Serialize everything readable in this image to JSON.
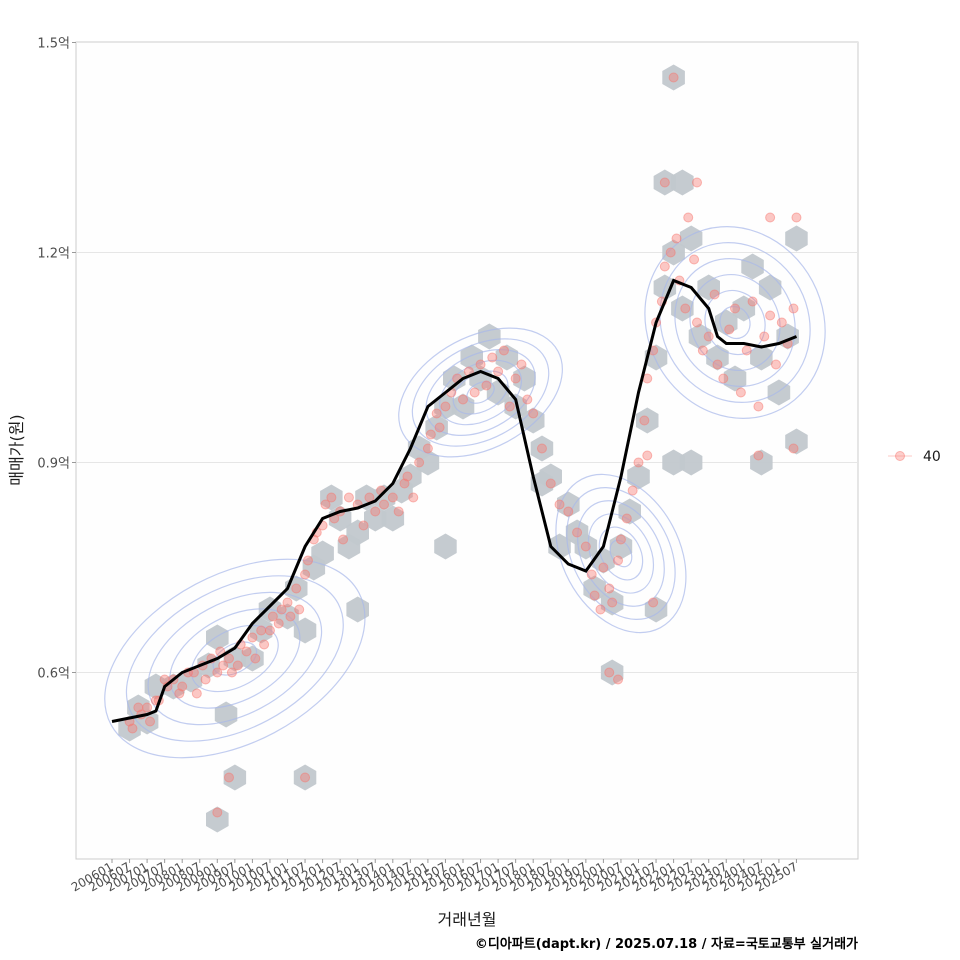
{
  "chart_data": {
    "type": "scatter",
    "xlabel": "거래년월",
    "ylabel": "매매가(원)",
    "caption": "©디아파트(dapt.kr) / 2025.07.18 / 자료=국토교통부 실거래가",
    "y_unit": "억",
    "ylim": [
      0.45,
      1.51
    ],
    "yticks": [
      0.6,
      0.9,
      1.2,
      1.5
    ],
    "ytick_labels": [
      "0.6억",
      "0.9억",
      "1.2억",
      "1.5억"
    ],
    "xtick_labels": [
      "200601",
      "200607",
      "200701",
      "200707",
      "200801",
      "200807",
      "200901",
      "200907",
      "201001",
      "201007",
      "201101",
      "201107",
      "201201",
      "201207",
      "201301",
      "201307",
      "201401",
      "201407",
      "201501",
      "201507",
      "201601",
      "201607",
      "201701",
      "201707",
      "201801",
      "201807",
      "201901",
      "201907",
      "202001",
      "202007",
      "202101",
      "202107",
      "202201",
      "202207",
      "202301",
      "202307",
      "202401",
      "202407",
      "202501",
      "202507"
    ],
    "grid": true,
    "legend_position": "right",
    "legend": [
      {
        "label": "40",
        "color": "#f8766d"
      }
    ],
    "colors": {
      "points": "#f8766d",
      "hex": "#c2c8cd",
      "contour": "#a8b8ea",
      "trend": "#000000"
    },
    "trend": {
      "x": [
        "2006-01",
        "2006-07",
        "2007-01",
        "2007-04",
        "2007-07",
        "2008-01",
        "2008-07",
        "2009-01",
        "2009-07",
        "2010-01",
        "2010-07",
        "2011-01",
        "2011-07",
        "2012-01",
        "2012-07",
        "2013-01",
        "2013-07",
        "2014-01",
        "2014-07",
        "2015-01",
        "2015-07",
        "2016-01",
        "2016-07",
        "2017-01",
        "2017-07",
        "2018-01",
        "2018-07",
        "2019-01",
        "2019-07",
        "2020-01",
        "2020-07",
        "2021-01",
        "2021-07",
        "2022-01",
        "2022-07",
        "2023-01",
        "2023-04",
        "2023-07",
        "2024-01",
        "2024-07",
        "2025-01",
        "2025-07"
      ],
      "y": [
        0.53,
        0.535,
        0.54,
        0.545,
        0.58,
        0.6,
        0.61,
        0.62,
        0.635,
        0.67,
        0.695,
        0.72,
        0.78,
        0.82,
        0.83,
        0.835,
        0.845,
        0.87,
        0.92,
        0.98,
        1.0,
        1.02,
        1.03,
        1.02,
        0.99,
        0.88,
        0.78,
        0.755,
        0.745,
        0.78,
        0.88,
        1.0,
        1.1,
        1.16,
        1.15,
        1.12,
        1.08,
        1.07,
        1.07,
        1.065,
        1.07,
        1.08
      ]
    },
    "series": [
      {
        "name": "40",
        "points": [
          [
            "2006-07",
            0.53
          ],
          [
            "2006-08",
            0.52
          ],
          [
            "2006-10",
            0.55
          ],
          [
            "2006-11",
            0.54
          ],
          [
            "2007-01",
            0.55
          ],
          [
            "2007-02",
            0.53
          ],
          [
            "2007-04",
            0.56
          ],
          [
            "2007-05",
            0.56
          ],
          [
            "2007-07",
            0.59
          ],
          [
            "2007-08",
            0.58
          ],
          [
            "2007-10",
            0.59
          ],
          [
            "2007-12",
            0.57
          ],
          [
            "2008-01",
            0.58
          ],
          [
            "2008-03",
            0.6
          ],
          [
            "2008-05",
            0.6
          ],
          [
            "2008-06",
            0.57
          ],
          [
            "2008-08",
            0.61
          ],
          [
            "2008-09",
            0.59
          ],
          [
            "2008-11",
            0.62
          ],
          [
            "2009-01",
            0.6
          ],
          [
            "2009-02",
            0.63
          ],
          [
            "2009-03",
            0.61
          ],
          [
            "2009-05",
            0.62
          ],
          [
            "2009-06",
            0.6
          ],
          [
            "2009-08",
            0.61
          ],
          [
            "2009-09",
            0.64
          ],
          [
            "2009-11",
            0.63
          ],
          [
            "2010-01",
            0.65
          ],
          [
            "2010-02",
            0.62
          ],
          [
            "2010-04",
            0.66
          ],
          [
            "2010-05",
            0.64
          ],
          [
            "2010-07",
            0.66
          ],
          [
            "2010-08",
            0.68
          ],
          [
            "2010-10",
            0.67
          ],
          [
            "2010-11",
            0.69
          ],
          [
            "2011-01",
            0.7
          ],
          [
            "2011-02",
            0.68
          ],
          [
            "2011-04",
            0.72
          ],
          [
            "2011-05",
            0.69
          ],
          [
            "2011-07",
            0.74
          ],
          [
            "2011-08",
            0.76
          ],
          [
            "2011-10",
            0.79
          ],
          [
            "2011-11",
            0.8
          ],
          [
            "2012-01",
            0.81
          ],
          [
            "2012-02",
            0.84
          ],
          [
            "2012-04",
            0.85
          ],
          [
            "2012-05",
            0.82
          ],
          [
            "2012-07",
            0.83
          ],
          [
            "2012-08",
            0.79
          ],
          [
            "2012-10",
            0.85
          ],
          [
            "2013-01",
            0.84
          ],
          [
            "2013-03",
            0.81
          ],
          [
            "2013-05",
            0.85
          ],
          [
            "2013-07",
            0.83
          ],
          [
            "2013-09",
            0.86
          ],
          [
            "2013-10",
            0.84
          ],
          [
            "2014-01",
            0.85
          ],
          [
            "2014-03",
            0.83
          ],
          [
            "2014-05",
            0.87
          ],
          [
            "2014-06",
            0.88
          ],
          [
            "2014-08",
            0.85
          ],
          [
            "2014-10",
            0.9
          ],
          [
            "2015-01",
            0.92
          ],
          [
            "2015-02",
            0.94
          ],
          [
            "2015-04",
            0.97
          ],
          [
            "2015-05",
            0.95
          ],
          [
            "2015-07",
            0.98
          ],
          [
            "2015-09",
            1.0
          ],
          [
            "2015-11",
            1.02
          ],
          [
            "2016-01",
            0.99
          ],
          [
            "2016-03",
            1.03
          ],
          [
            "2016-05",
            1.0
          ],
          [
            "2016-07",
            1.04
          ],
          [
            "2016-09",
            1.01
          ],
          [
            "2016-11",
            1.05
          ],
          [
            "2017-01",
            1.03
          ],
          [
            "2017-03",
            1.06
          ],
          [
            "2017-05",
            0.98
          ],
          [
            "2017-07",
            1.02
          ],
          [
            "2017-09",
            1.04
          ],
          [
            "2017-11",
            0.99
          ],
          [
            "2018-01",
            0.97
          ],
          [
            "2018-04",
            0.92
          ],
          [
            "2018-07",
            0.87
          ],
          [
            "2018-10",
            0.84
          ],
          [
            "2019-01",
            0.83
          ],
          [
            "2019-04",
            0.8
          ],
          [
            "2019-07",
            0.78
          ],
          [
            "2019-09",
            0.74
          ],
          [
            "2019-10",
            0.71
          ],
          [
            "2019-12",
            0.69
          ],
          [
            "2020-01",
            0.75
          ],
          [
            "2020-03",
            0.72
          ],
          [
            "2020-04",
            0.7
          ],
          [
            "2020-06",
            0.76
          ],
          [
            "2020-07",
            0.79
          ],
          [
            "2020-09",
            0.82
          ],
          [
            "2020-11",
            0.86
          ],
          [
            "2021-01",
            0.9
          ],
          [
            "2021-03",
            0.96
          ],
          [
            "2021-04",
            1.02
          ],
          [
            "2021-06",
            1.06
          ],
          [
            "2021-07",
            1.1
          ],
          [
            "2021-09",
            1.13
          ],
          [
            "2021-10",
            1.18
          ],
          [
            "2021-12",
            1.2
          ],
          [
            "2022-02",
            1.22
          ],
          [
            "2022-03",
            1.16
          ],
          [
            "2022-05",
            1.12
          ],
          [
            "2022-06",
            1.25
          ],
          [
            "2022-08",
            1.19
          ],
          [
            "2022-09",
            1.1
          ],
          [
            "2022-11",
            1.06
          ],
          [
            "2023-01",
            1.08
          ],
          [
            "2023-03",
            1.14
          ],
          [
            "2023-04",
            1.04
          ],
          [
            "2023-06",
            1.02
          ],
          [
            "2023-08",
            1.09
          ],
          [
            "2023-10",
            1.12
          ],
          [
            "2023-12",
            1.0
          ],
          [
            "2024-02",
            1.06
          ],
          [
            "2024-04",
            1.13
          ],
          [
            "2024-06",
            0.98
          ],
          [
            "2024-08",
            1.08
          ],
          [
            "2024-10",
            1.11
          ],
          [
            "2024-12",
            1.04
          ],
          [
            "2025-02",
            1.1
          ],
          [
            "2025-04",
            1.07
          ],
          [
            "2025-06",
            1.12
          ],
          [
            "2009-05",
            0.45
          ],
          [
            "2011-07",
            0.45
          ],
          [
            "2009-01",
            0.4
          ],
          [
            "2020-03",
            0.6
          ],
          [
            "2020-06",
            0.59
          ],
          [
            "2021-06",
            0.7
          ],
          [
            "2022-01",
            1.45
          ],
          [
            "2021-04",
            0.91
          ],
          [
            "2024-06",
            0.91
          ],
          [
            "2024-10",
            1.25
          ],
          [
            "2025-07",
            1.25
          ],
          [
            "2021-10",
            1.3
          ],
          [
            "2022-09",
            1.3
          ],
          [
            "2025-06",
            0.92
          ]
        ]
      }
    ],
    "hex_bins": [
      [
        "2006-07",
        0.52
      ],
      [
        "2006-10",
        0.55
      ],
      [
        "2007-04",
        0.58
      ],
      [
        "2007-01",
        0.53
      ],
      [
        "2007-10",
        0.58
      ],
      [
        "2008-04",
        0.59
      ],
      [
        "2008-10",
        0.61
      ],
      [
        "2009-01",
        0.65
      ],
      [
        "2009-07",
        0.62
      ],
      [
        "2009-04",
        0.54
      ],
      [
        "2010-01",
        0.62
      ],
      [
        "2010-04",
        0.66
      ],
      [
        "2010-07",
        0.69
      ],
      [
        "2011-01",
        0.68
      ],
      [
        "2011-07",
        0.66
      ],
      [
        "2011-04",
        0.72
      ],
      [
        "2011-10",
        0.75
      ],
      [
        "2012-01",
        0.77
      ],
      [
        "2012-04",
        0.85
      ],
      [
        "2012-07",
        0.82
      ],
      [
        "2012-10",
        0.78
      ],
      [
        "2013-01",
        0.8
      ],
      [
        "2013-04",
        0.85
      ],
      [
        "2013-07",
        0.82
      ],
      [
        "2013-10",
        0.85
      ],
      [
        "2014-01",
        0.82
      ],
      [
        "2014-04",
        0.86
      ],
      [
        "2014-07",
        0.88
      ],
      [
        "2014-10",
        0.92
      ],
      [
        "2015-01",
        0.9
      ],
      [
        "2015-04",
        0.95
      ],
      [
        "2015-07",
        0.98
      ],
      [
        "2015-10",
        1.02
      ],
      [
        "2016-01",
        0.98
      ],
      [
        "2016-04",
        1.05
      ],
      [
        "2016-07",
        1.02
      ],
      [
        "2016-10",
        1.08
      ],
      [
        "2017-01",
        1.0
      ],
      [
        "2017-04",
        1.05
      ],
      [
        "2017-07",
        0.98
      ],
      [
        "2017-10",
        1.02
      ],
      [
        "2018-01",
        0.96
      ],
      [
        "2018-04",
        0.92
      ],
      [
        "2018-07",
        0.88
      ],
      [
        "2019-01",
        0.84
      ],
      [
        "2019-04",
        0.8
      ],
      [
        "2019-07",
        0.78
      ],
      [
        "2019-10",
        0.72
      ],
      [
        "2020-01",
        0.76
      ],
      [
        "2020-04",
        0.7
      ],
      [
        "2020-07",
        0.78
      ],
      [
        "2020-10",
        0.83
      ],
      [
        "2021-01",
        0.88
      ],
      [
        "2021-04",
        0.96
      ],
      [
        "2021-07",
        1.05
      ],
      [
        "2021-10",
        1.15
      ],
      [
        "2022-01",
        1.2
      ],
      [
        "2022-04",
        1.12
      ],
      [
        "2022-07",
        1.22
      ],
      [
        "2022-10",
        1.08
      ],
      [
        "2023-01",
        1.15
      ],
      [
        "2023-04",
        1.05
      ],
      [
        "2023-07",
        1.1
      ],
      [
        "2023-10",
        1.02
      ],
      [
        "2024-01",
        1.12
      ],
      [
        "2024-04",
        1.18
      ],
      [
        "2024-07",
        1.05
      ],
      [
        "2024-10",
        1.15
      ],
      [
        "2025-01",
        1.0
      ],
      [
        "2025-04",
        1.08
      ],
      [
        "2025-07",
        1.22
      ],
      [
        "2009-07",
        0.45
      ],
      [
        "2011-07",
        0.45
      ],
      [
        "2009-01",
        0.39
      ],
      [
        "2020-04",
        0.6
      ],
      [
        "2021-07",
        0.69
      ],
      [
        "2021-10",
        1.3
      ],
      [
        "2022-04",
        1.3
      ],
      [
        "2022-01",
        1.45
      ],
      [
        "2022-01",
        0.9
      ],
      [
        "2022-07",
        0.9
      ],
      [
        "2024-07",
        0.9
      ],
      [
        "2025-07",
        0.93
      ],
      [
        "2015-07",
        0.78
      ],
      [
        "2013-01",
        0.69
      ],
      [
        "2018-10",
        0.78
      ],
      [
        "2018-04",
        0.87
      ]
    ],
    "density_blobs": [
      {
        "center": [
          "2009-07",
          0.62
        ],
        "rx_months": 48,
        "ry": 0.12
      },
      {
        "center": [
          "2016-07",
          1.0
        ],
        "rx_months": 30,
        "ry": 0.08
      },
      {
        "center": [
          "2020-07",
          0.77
        ],
        "rx_months": 20,
        "ry": 0.12
      },
      {
        "center": [
          "2023-10",
          1.1
        ],
        "rx_months": 30,
        "ry": 0.14
      }
    ]
  }
}
